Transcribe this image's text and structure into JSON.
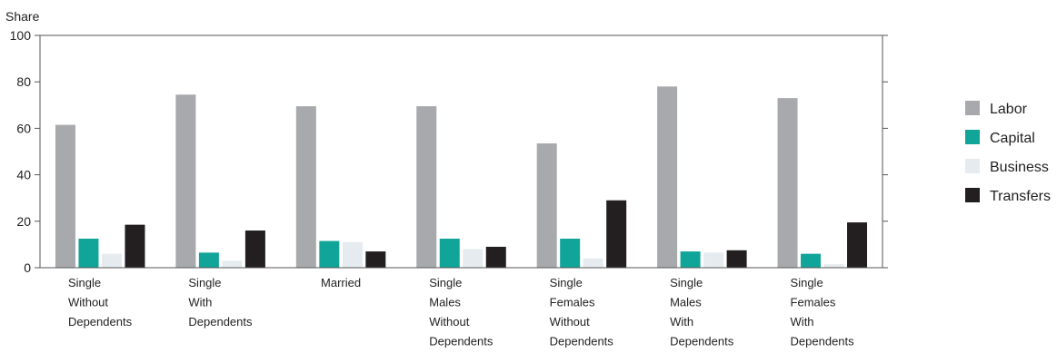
{
  "chart_data": {
    "type": "bar",
    "ylabel": "Share",
    "ylim": [
      0,
      100
    ],
    "yticks": [
      0,
      20,
      40,
      60,
      80,
      100
    ],
    "grid": false,
    "legend_position": "right",
    "categories": [
      [
        "Single",
        "Without",
        "Dependents"
      ],
      [
        "Single",
        "With",
        "Dependents"
      ],
      [
        "Married"
      ],
      [
        "Single",
        "Males",
        "Without",
        "Dependents"
      ],
      [
        "Single",
        "Females",
        "Without",
        "Dependents"
      ],
      [
        "Single",
        "Males",
        "With",
        "Dependents"
      ],
      [
        "Single",
        "Females",
        "With",
        "Dependents"
      ]
    ],
    "series": [
      {
        "name": "Labor",
        "color": "#a7a9ac",
        "values": [
          61.5,
          74.5,
          69.5,
          69.5,
          53.5,
          78.0,
          73.0
        ]
      },
      {
        "name": "Capital",
        "color": "#11a59a",
        "values": [
          12.5,
          6.5,
          11.5,
          12.5,
          12.5,
          7.0,
          6.0
        ]
      },
      {
        "name": "Business",
        "color": "#e5ebef",
        "values": [
          6.0,
          3.0,
          11.0,
          8.0,
          4.0,
          6.5,
          1.5
        ]
      },
      {
        "name": "Transfers",
        "color": "#231f20",
        "values": [
          18.5,
          16.0,
          7.0,
          9.0,
          29.0,
          7.5,
          19.5
        ]
      }
    ]
  }
}
